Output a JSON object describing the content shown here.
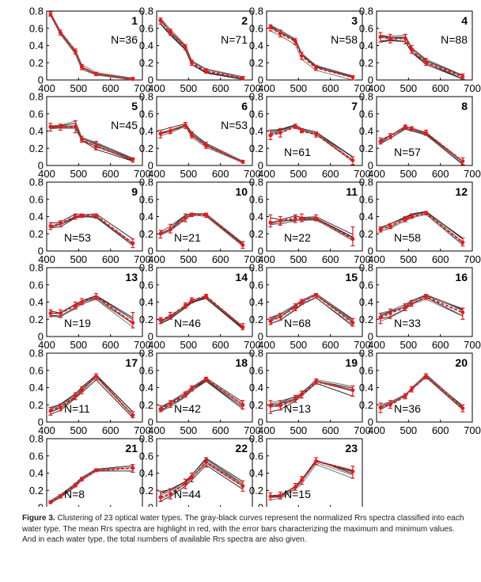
{
  "figure": {
    "caption_label": "Figure 3.",
    "caption_text": "Clustering of 23 optical water types. The gray-black curves represent the normalized Rrs spectra classified into each water type. The mean Rrs spectra are highlight in red, with the error bars characterizing the maximum and minimum values. And in each water type, the total numbers of available Rrs spectra are also given."
  },
  "chart_data": {
    "type": "line",
    "layout": "small-multiples grid, 4 columns x 6 rows",
    "xlabel": "",
    "ylabel": "",
    "x": [
      412,
      443,
      490,
      510,
      555,
      670
    ],
    "xlim": [
      400,
      700
    ],
    "xticks": [
      400,
      500,
      600,
      700
    ],
    "ylim": [
      0,
      0.8
    ],
    "yticks": [
      0,
      0.2,
      0.4,
      0.6,
      0.8
    ],
    "series_colors": {
      "members": "#2b2b2b",
      "mean": "#e41a1c"
    },
    "panels": [
      {
        "id": "1",
        "n_label": "N=36",
        "mean": [
          0.76,
          0.55,
          0.33,
          0.15,
          0.07,
          0.01
        ],
        "min": [
          0.74,
          0.52,
          0.3,
          0.12,
          0.05,
          0.0
        ],
        "max": [
          0.79,
          0.58,
          0.36,
          0.18,
          0.09,
          0.03
        ]
      },
      {
        "id": "2",
        "n_label": "N=71",
        "mean": [
          0.69,
          0.56,
          0.38,
          0.2,
          0.1,
          0.02
        ],
        "min": [
          0.65,
          0.52,
          0.35,
          0.17,
          0.08,
          0.0
        ],
        "max": [
          0.72,
          0.59,
          0.41,
          0.23,
          0.13,
          0.04
        ]
      },
      {
        "id": "3",
        "n_label": "N=58",
        "mean": [
          0.61,
          0.54,
          0.45,
          0.28,
          0.14,
          0.03
        ],
        "min": [
          0.57,
          0.5,
          0.41,
          0.24,
          0.11,
          0.0
        ],
        "max": [
          0.64,
          0.58,
          0.48,
          0.32,
          0.17,
          0.05
        ]
      },
      {
        "id": "4",
        "n_label": "N=88",
        "mean": [
          0.5,
          0.48,
          0.48,
          0.35,
          0.2,
          0.04
        ],
        "min": [
          0.44,
          0.43,
          0.42,
          0.31,
          0.17,
          0.01
        ],
        "max": [
          0.55,
          0.53,
          0.53,
          0.4,
          0.25,
          0.07
        ]
      },
      {
        "id": "5",
        "n_label": "N=45",
        "mean": [
          0.45,
          0.45,
          0.45,
          0.3,
          0.22,
          0.07
        ],
        "min": [
          0.4,
          0.41,
          0.38,
          0.27,
          0.18,
          0.04
        ],
        "max": [
          0.49,
          0.48,
          0.52,
          0.34,
          0.28,
          0.09
        ]
      },
      {
        "id": "6",
        "n_label": "N=53",
        "mean": [
          0.37,
          0.4,
          0.47,
          0.35,
          0.23,
          0.04
        ],
        "min": [
          0.32,
          0.37,
          0.43,
          0.32,
          0.2,
          0.03
        ],
        "max": [
          0.41,
          0.44,
          0.5,
          0.39,
          0.27,
          0.06
        ]
      },
      {
        "id": "7",
        "n_label": "N=61",
        "mean": [
          0.35,
          0.38,
          0.45,
          0.4,
          0.36,
          0.06
        ],
        "min": [
          0.3,
          0.33,
          0.43,
          0.38,
          0.33,
          0.01
        ],
        "max": [
          0.41,
          0.43,
          0.48,
          0.43,
          0.39,
          0.1
        ]
      },
      {
        "id": "8",
        "n_label": "N=57",
        "mean": [
          0.28,
          0.34,
          0.45,
          0.43,
          0.38,
          0.05
        ],
        "min": [
          0.25,
          0.31,
          0.42,
          0.4,
          0.35,
          0.01
        ],
        "max": [
          0.32,
          0.37,
          0.47,
          0.45,
          0.41,
          0.09
        ]
      },
      {
        "id": "9",
        "n_label": "N=53",
        "mean": [
          0.29,
          0.32,
          0.4,
          0.41,
          0.41,
          0.09
        ],
        "min": [
          0.25,
          0.28,
          0.37,
          0.39,
          0.38,
          0.04
        ],
        "max": [
          0.33,
          0.35,
          0.43,
          0.43,
          0.43,
          0.14
        ]
      },
      {
        "id": "10",
        "n_label": "N=21",
        "mean": [
          0.2,
          0.25,
          0.38,
          0.42,
          0.42,
          0.07
        ],
        "min": [
          0.15,
          0.21,
          0.34,
          0.4,
          0.39,
          0.03
        ],
        "max": [
          0.24,
          0.31,
          0.43,
          0.44,
          0.44,
          0.11
        ]
      },
      {
        "id": "11",
        "n_label": "N=22",
        "mean": [
          0.33,
          0.35,
          0.38,
          0.38,
          0.38,
          0.14
        ],
        "min": [
          0.28,
          0.3,
          0.33,
          0.34,
          0.35,
          0.06
        ],
        "max": [
          0.42,
          0.4,
          0.42,
          0.43,
          0.42,
          0.28
        ]
      },
      {
        "id": "12",
        "n_label": "N=58",
        "mean": [
          0.25,
          0.29,
          0.37,
          0.4,
          0.44,
          0.1
        ],
        "min": [
          0.22,
          0.26,
          0.34,
          0.38,
          0.42,
          0.06
        ],
        "max": [
          0.28,
          0.32,
          0.4,
          0.43,
          0.46,
          0.15
        ]
      },
      {
        "id": "13",
        "n_label": "N=19",
        "mean": [
          0.27,
          0.27,
          0.36,
          0.4,
          0.46,
          0.16
        ],
        "min": [
          0.23,
          0.22,
          0.32,
          0.37,
          0.43,
          0.1
        ],
        "max": [
          0.31,
          0.31,
          0.4,
          0.44,
          0.5,
          0.28
        ]
      },
      {
        "id": "14",
        "n_label": "N=46",
        "mean": [
          0.19,
          0.24,
          0.36,
          0.42,
          0.47,
          0.11
        ],
        "min": [
          0.15,
          0.2,
          0.33,
          0.39,
          0.44,
          0.08
        ],
        "max": [
          0.22,
          0.28,
          0.39,
          0.45,
          0.49,
          0.15
        ]
      },
      {
        "id": "15",
        "n_label": "N=68",
        "mean": [
          0.18,
          0.23,
          0.34,
          0.4,
          0.48,
          0.16
        ],
        "min": [
          0.14,
          0.19,
          0.3,
          0.37,
          0.45,
          0.12
        ],
        "max": [
          0.22,
          0.27,
          0.38,
          0.43,
          0.5,
          0.21
        ]
      },
      {
        "id": "16",
        "n_label": "N=33",
        "mean": [
          0.22,
          0.27,
          0.34,
          0.38,
          0.46,
          0.28
        ],
        "min": [
          0.15,
          0.21,
          0.3,
          0.35,
          0.43,
          0.2
        ],
        "max": [
          0.27,
          0.32,
          0.38,
          0.42,
          0.49,
          0.33
        ]
      },
      {
        "id": "17",
        "n_label": "N=11",
        "mean": [
          0.13,
          0.17,
          0.3,
          0.37,
          0.53,
          0.08
        ],
        "min": [
          0.08,
          0.13,
          0.26,
          0.33,
          0.49,
          0.05
        ],
        "max": [
          0.17,
          0.21,
          0.34,
          0.41,
          0.56,
          0.12
        ]
      },
      {
        "id": "18",
        "n_label": "N=42",
        "mean": [
          0.15,
          0.21,
          0.32,
          0.39,
          0.5,
          0.2
        ],
        "min": [
          0.12,
          0.17,
          0.29,
          0.36,
          0.47,
          0.15
        ],
        "max": [
          0.19,
          0.25,
          0.35,
          0.42,
          0.52,
          0.25
        ]
      },
      {
        "id": "19",
        "n_label": "N=13",
        "mean": [
          0.19,
          0.19,
          0.27,
          0.32,
          0.47,
          0.37
        ],
        "min": [
          0.1,
          0.14,
          0.23,
          0.28,
          0.44,
          0.3
        ],
        "max": [
          0.25,
          0.25,
          0.31,
          0.36,
          0.5,
          0.42
        ]
      },
      {
        "id": "20",
        "n_label": "N=36",
        "mean": [
          0.17,
          0.2,
          0.3,
          0.38,
          0.53,
          0.16
        ],
        "min": [
          0.11,
          0.16,
          0.27,
          0.35,
          0.5,
          0.12
        ],
        "max": [
          0.22,
          0.25,
          0.33,
          0.41,
          0.56,
          0.2
        ]
      },
      {
        "id": "21",
        "n_label": "N=8",
        "mean": [
          0.06,
          0.13,
          0.26,
          0.33,
          0.43,
          0.46
        ],
        "min": [
          0.05,
          0.11,
          0.24,
          0.31,
          0.42,
          0.41
        ],
        "max": [
          0.08,
          0.15,
          0.28,
          0.35,
          0.45,
          0.5
        ]
      },
      {
        "id": "22",
        "n_label": "N=44",
        "mean": [
          0.12,
          0.16,
          0.28,
          0.35,
          0.53,
          0.25
        ],
        "min": [
          0.07,
          0.1,
          0.22,
          0.3,
          0.47,
          0.19
        ],
        "max": [
          0.19,
          0.22,
          0.33,
          0.4,
          0.58,
          0.31
        ]
      },
      {
        "id": "23",
        "n_label": "N=15",
        "mean": [
          0.13,
          0.14,
          0.24,
          0.32,
          0.54,
          0.42
        ],
        "min": [
          0.09,
          0.1,
          0.2,
          0.27,
          0.5,
          0.34
        ],
        "max": [
          0.17,
          0.18,
          0.28,
          0.36,
          0.58,
          0.48
        ]
      }
    ]
  }
}
